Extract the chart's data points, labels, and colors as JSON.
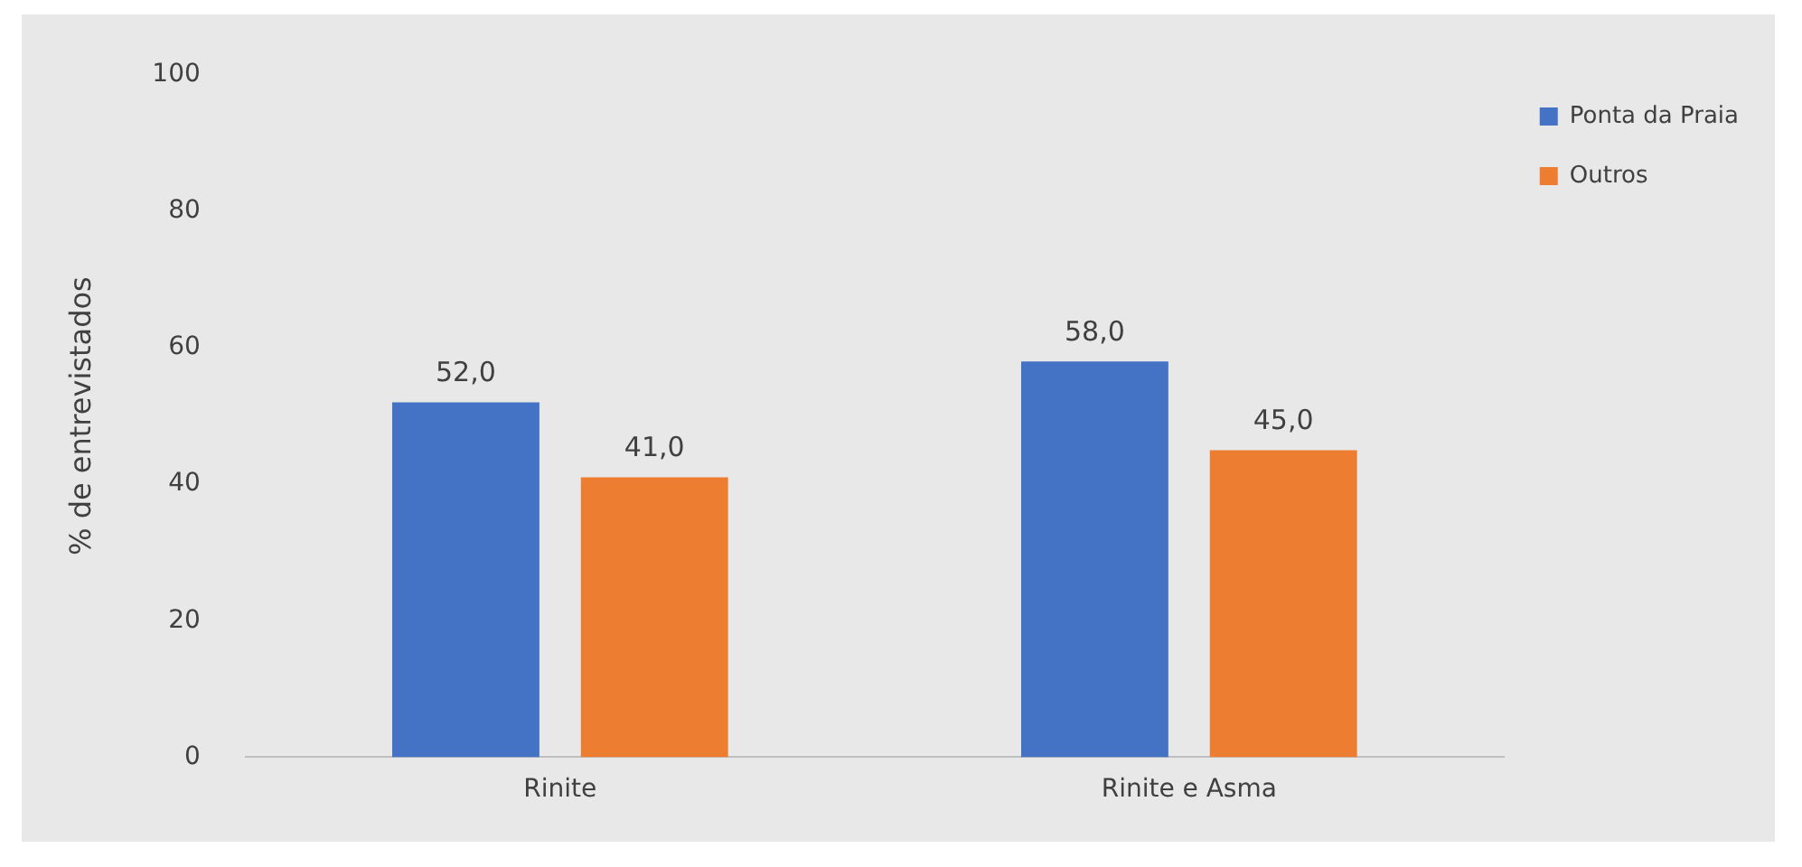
{
  "chart_data": {
    "type": "bar",
    "ylabel": "% de entrevistados",
    "categories": [
      "Rinite",
      "Rinite e Asma"
    ],
    "series": [
      {
        "name": "Ponta da Praia",
        "color": "#4472c4",
        "values": [
          52.0,
          58.0
        ],
        "value_labels": [
          "52,0",
          "58,0"
        ]
      },
      {
        "name": "Outros",
        "color": "#ed7d31",
        "values": [
          41.0,
          45.0
        ],
        "value_labels": [
          "41,0",
          "45,0"
        ]
      }
    ],
    "ylim": [
      0,
      100
    ],
    "yticks": [
      0,
      20,
      40,
      60,
      80,
      100
    ],
    "grid": false,
    "legend": "top right"
  }
}
